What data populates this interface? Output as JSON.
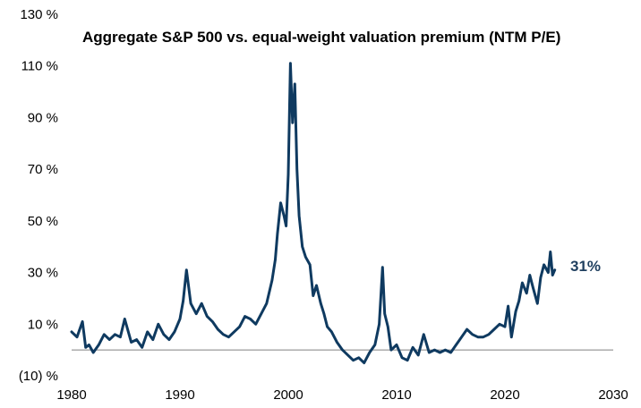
{
  "chart_data": {
    "type": "line",
    "title": "Aggregate S&P 500 vs. equal-weight valuation premium (NTM P/E)",
    "xlabel": "",
    "ylabel": "",
    "xlim": [
      1980,
      2030
    ],
    "ylim": [
      -10,
      130
    ],
    "x_ticks": [
      "1980",
      "1990",
      "2000",
      "2010",
      "2020",
      "2030"
    ],
    "y_ticks": [
      "130 %",
      "110 %",
      "90 %",
      "70 %",
      "50 %",
      "30 %",
      "10 %",
      "(10) %"
    ],
    "y_tick_values": [
      130,
      110,
      90,
      70,
      50,
      30,
      10,
      -10
    ],
    "baseline": 0,
    "grid": false,
    "end_label": "31%",
    "colors": {
      "line": "#0f3a60",
      "label": "#1f3f5f",
      "baseline": "#808080"
    },
    "series": [
      {
        "x": [
          1980.0,
          1980.5,
          1981.0,
          1981.3,
          1981.6,
          1982.0,
          1982.5,
          1983.0,
          1983.5,
          1984.0,
          1984.5,
          1984.9,
          1985.5,
          1986.0,
          1986.5,
          1987.0,
          1987.5,
          1988.0,
          1988.5,
          1989.0,
          1989.5,
          1990.0,
          1990.3,
          1990.6,
          1991.0,
          1991.5,
          1992.0,
          1992.5,
          1993.0,
          1993.5,
          1994.0,
          1994.5,
          1995.0,
          1995.5,
          1996.0,
          1996.5,
          1997.0,
          1997.5,
          1998.0,
          1998.5,
          1998.8,
          1999.0,
          1999.3,
          1999.6,
          1999.8,
          2000.0,
          2000.2,
          2000.4,
          2000.6,
          2000.8,
          2001.0,
          2001.3,
          2001.6,
          2002.0,
          2002.3,
          2002.6,
          2003.0,
          2003.3,
          2003.6,
          2004.0,
          2004.5,
          2005.0,
          2005.5,
          2006.0,
          2006.5,
          2007.0,
          2007.5,
          2008.0,
          2008.4,
          2008.7,
          2008.9,
          2009.2,
          2009.5,
          2010.0,
          2010.5,
          2011.0,
          2011.5,
          2012.0,
          2012.5,
          2013.0,
          2013.5,
          2014.0,
          2014.5,
          2015.0,
          2015.5,
          2016.0,
          2016.5,
          2017.0,
          2017.5,
          2018.0,
          2018.5,
          2019.0,
          2019.5,
          2020.0,
          2020.3,
          2020.6,
          2021.0,
          2021.3,
          2021.6,
          2022.0,
          2022.3,
          2022.6,
          2023.0,
          2023.3,
          2023.6,
          2024.0,
          2024.2,
          2024.4,
          2024.6
        ],
        "values": [
          7,
          5,
          11,
          1,
          2,
          -1,
          2,
          6,
          4,
          6,
          5,
          12,
          3,
          4,
          1,
          7,
          4,
          10,
          6,
          4,
          7,
          12,
          19,
          31,
          18,
          14,
          18,
          13,
          11,
          8,
          6,
          5,
          7,
          9,
          13,
          12,
          10,
          14,
          18,
          27,
          35,
          45,
          57,
          52,
          48,
          68,
          111,
          88,
          103,
          70,
          52,
          40,
          36,
          33,
          21,
          25,
          18,
          14,
          9,
          7,
          3,
          0,
          -2,
          -4,
          -3,
          -5,
          -1,
          2,
          10,
          32,
          14,
          9,
          0,
          2,
          -3,
          -4,
          1,
          -2,
          6,
          -1,
          0,
          -1,
          0,
          -1,
          2,
          5,
          8,
          6,
          5,
          5,
          6,
          8,
          10,
          9,
          17,
          5,
          15,
          19,
          26,
          22,
          29,
          24,
          18,
          28,
          33,
          30,
          38,
          29,
          31
        ]
      }
    ]
  }
}
